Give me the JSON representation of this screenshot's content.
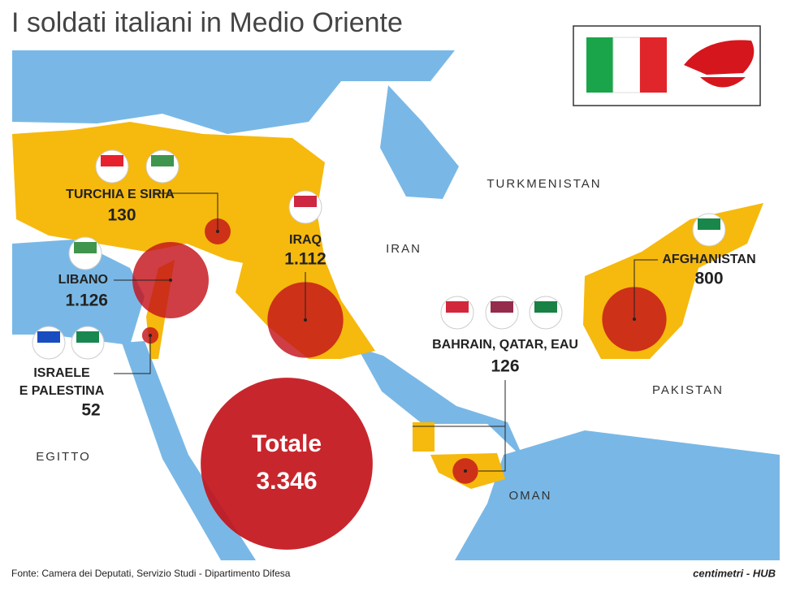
{
  "title": "I soldati italiani in Medio Oriente",
  "regions": [
    {
      "name": [
        "TURCHIA E SIRIA"
      ],
      "value": {
        "value": 130,
        "label": "130"
      }
    },
    {
      "name": [
        "LIBANO"
      ],
      "value": {
        "value": 1126,
        "label": "1.126"
      }
    },
    {
      "name": [
        "IRAQ"
      ],
      "value": {
        "value": 1112,
        "label": "1.112"
      }
    },
    {
      "name": [
        "ISRAELE",
        "E PALESTINA"
      ],
      "value": {
        "value": 52,
        "label": "52"
      }
    },
    {
      "name": [
        "BAHRAIN, QATAR, EAU"
      ],
      "value": {
        "value": 126,
        "label": "126"
      }
    },
    {
      "name": [
        "AFGHANISTAN"
      ],
      "value": {
        "value": 800,
        "label": "800"
      }
    }
  ],
  "total": {
    "label": "Totale",
    "value": {
      "value": 3346,
      "label": "3.346"
    }
  },
  "countries": [
    "TURKMENISTAN",
    "IRAN",
    "PAKISTAN",
    "EGITTO",
    "OMAN"
  ],
  "source": "Fonte: Camera dei Deputati, Servizio Studi - Dipartimento Difesa",
  "brand": "centimetri - HUB"
}
